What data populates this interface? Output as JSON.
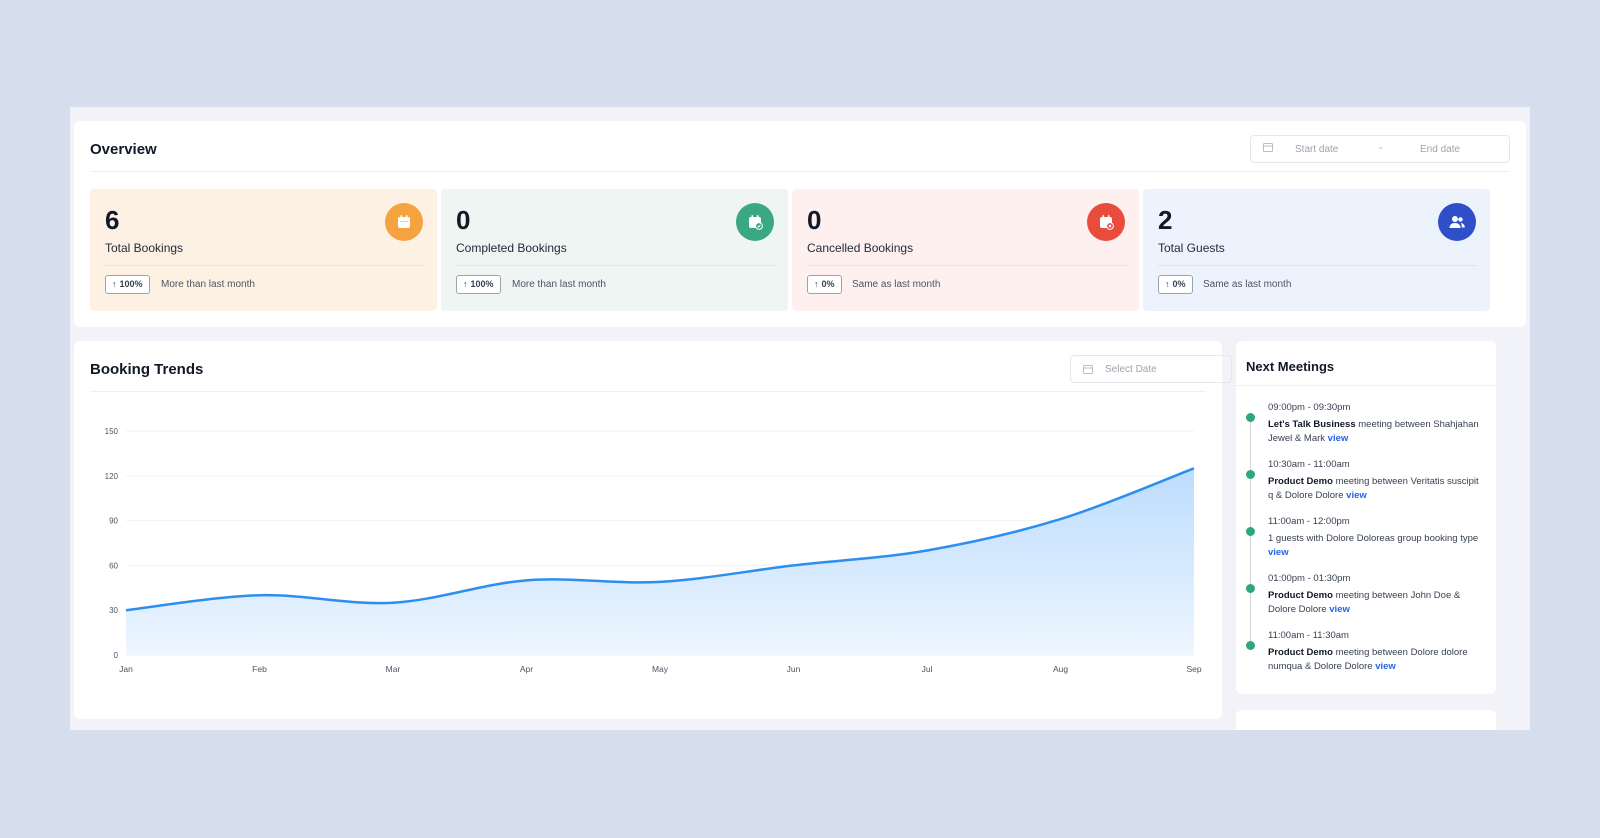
{
  "overview": {
    "title": "Overview",
    "date_range": {
      "start_placeholder": "Start date",
      "separator": "-",
      "end_placeholder": "End date"
    }
  },
  "stats": [
    {
      "value": "6",
      "label": "Total Bookings",
      "badge": "100%",
      "badge_arrow": "↑",
      "comparison": "More than last month",
      "bg": "#fdf1e3",
      "icon_color": "#f4a340",
      "icon": "calendar-icon"
    },
    {
      "value": "0",
      "label": "Completed Bookings",
      "badge": "100%",
      "badge_arrow": "↑",
      "comparison": "More than last month",
      "bg": "#eef5f3",
      "icon_color": "#3aa883",
      "icon": "calendar-check-icon"
    },
    {
      "value": "0",
      "label": "Cancelled Bookings",
      "badge": "0%",
      "badge_arrow": "↑",
      "comparison": "Same as last month",
      "bg": "#fdf0ef",
      "icon_color": "#e84c3d",
      "icon": "calendar-x-icon"
    },
    {
      "value": "2",
      "label": "Total Guests",
      "badge": "0%",
      "badge_arrow": "↑",
      "comparison": "Same as last month",
      "bg": "#edf3fc",
      "icon_color": "#2e4fc7",
      "icon": "users-icon"
    }
  ],
  "trends": {
    "title": "Booking Trends",
    "select_date_placeholder": "Select Date"
  },
  "chart_data": {
    "type": "area",
    "categories": [
      "Jan",
      "Feb",
      "Mar",
      "Apr",
      "May",
      "Jun",
      "Jul",
      "Aug",
      "Sep"
    ],
    "values": [
      30,
      40,
      35,
      50,
      49,
      60,
      70,
      91,
      125
    ],
    "y_ticks": [
      0,
      30,
      60,
      90,
      120,
      150
    ],
    "ylim": [
      0,
      150
    ],
    "line_color": "#2d8ef0",
    "fill_color": "#bcdcfd",
    "grid": true
  },
  "meetings": {
    "title": "Next Meetings",
    "items": [
      {
        "time": "09:00pm - 09:30pm",
        "bold": "Let's Talk Business",
        "text": " meeting between Shahjahan Jewel & Mark ",
        "link": "view"
      },
      {
        "time": "10:30am - 11:00am",
        "bold": "Product Demo",
        "text": " meeting between Veritatis suscipit q & Dolore Dolore ",
        "link": "view"
      },
      {
        "time": "11:00am - 12:00pm",
        "bold": "",
        "text": "1 guests with Dolore Doloreas group booking type ",
        "link": "view"
      },
      {
        "time": "01:00pm - 01:30pm",
        "bold": "Product Demo",
        "text": " meeting between John Doe & Dolore Dolore ",
        "link": "view"
      },
      {
        "time": "11:00am - 11:30am",
        "bold": "Product Demo",
        "text": " meeting between Dolore dolore numqua & Dolore Dolore ",
        "link": "view"
      }
    ]
  }
}
